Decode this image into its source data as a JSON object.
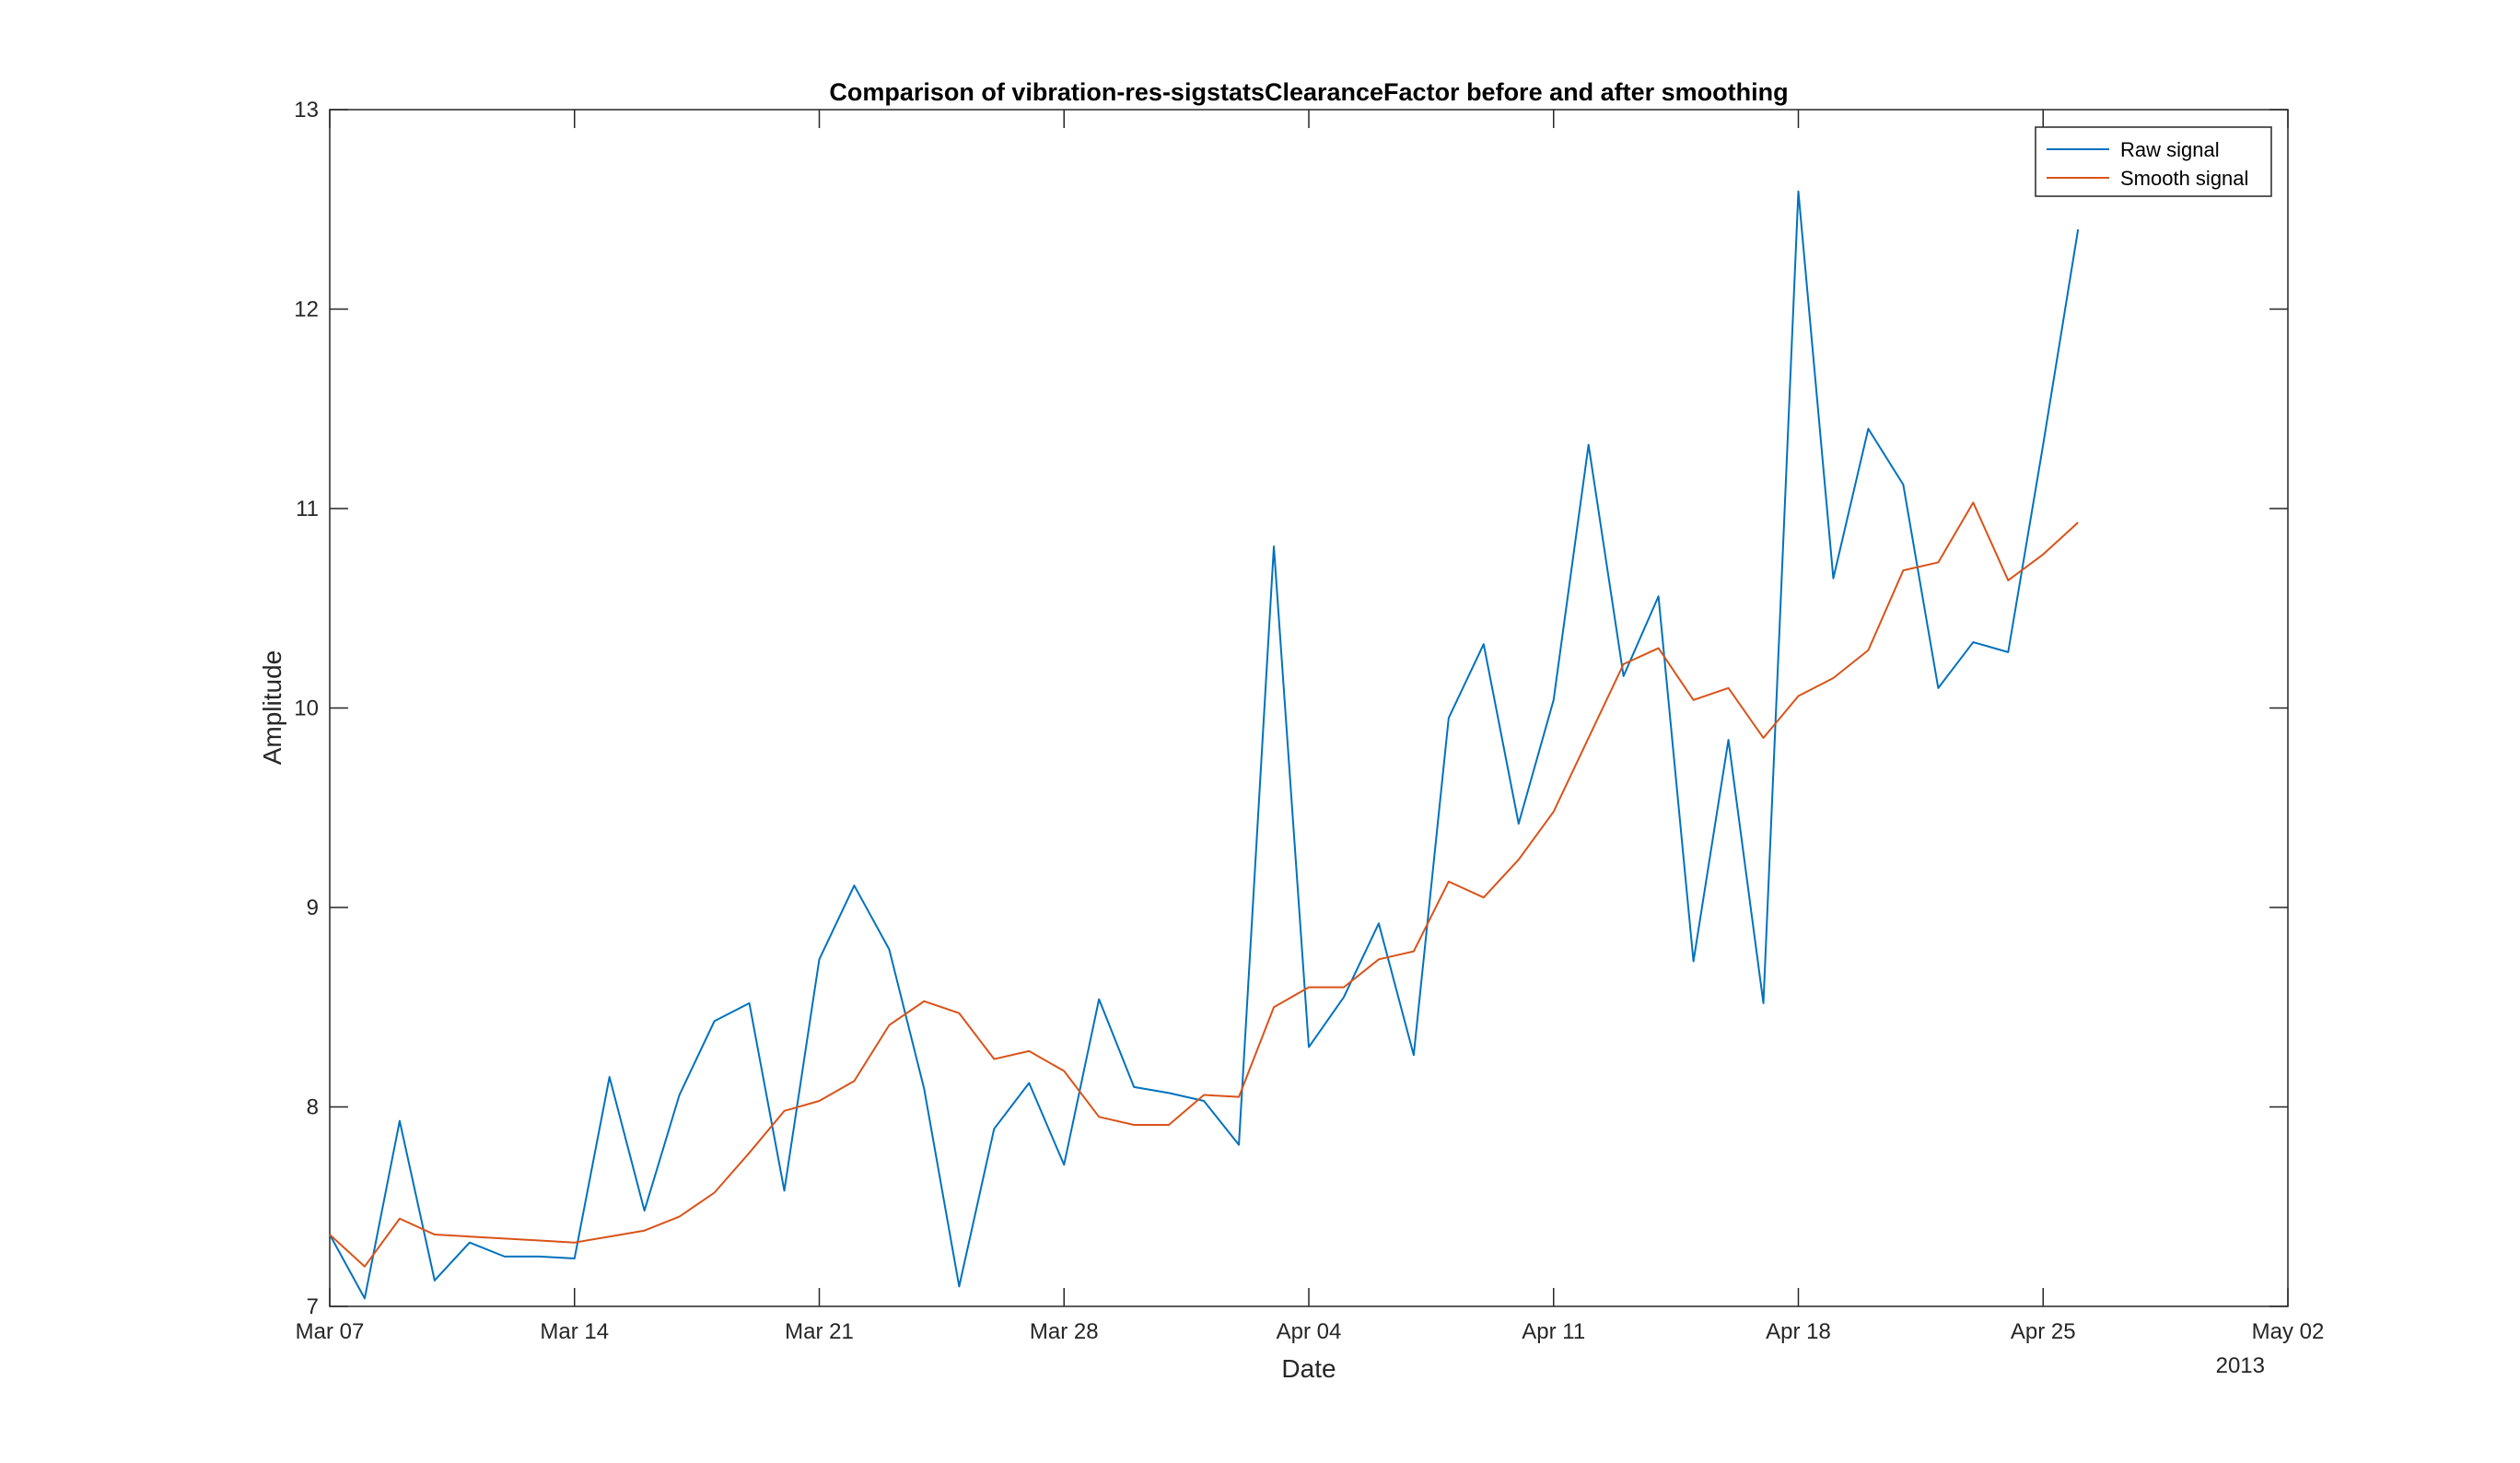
{
  "chart_data": {
    "type": "line",
    "title": "Comparison of vibration-res-sigstatsClearanceFactor before and after smoothing",
    "xlabel": "Date",
    "ylabel": "Amplitude",
    "x_axis_year_label": "2013",
    "x_ticks": [
      "Mar 07",
      "Mar 14",
      "Mar 21",
      "Mar 28",
      "Apr 04",
      "Apr 11",
      "Apr 18",
      "Apr 25",
      "May 02"
    ],
    "x_tick_dates": [
      "2013-03-07",
      "2013-03-14",
      "2013-03-21",
      "2013-03-28",
      "2013-04-04",
      "2013-04-11",
      "2013-04-18",
      "2013-04-25",
      "2013-05-02"
    ],
    "xlim": [
      "2013-03-07",
      "2013-05-02"
    ],
    "y_ticks": [
      "7",
      "8",
      "9",
      "10",
      "11",
      "12",
      "13"
    ],
    "ylim": [
      7,
      13
    ],
    "grid": false,
    "legend_position": "top-right",
    "x": [
      "2013-03-07",
      "2013-03-08",
      "2013-03-09",
      "2013-03-10",
      "2013-03-11",
      "2013-03-12",
      "2013-03-13",
      "2013-03-14",
      "2013-03-15",
      "2013-03-16",
      "2013-03-17",
      "2013-03-18",
      "2013-03-19",
      "2013-03-20",
      "2013-03-21",
      "2013-03-22",
      "2013-03-23",
      "2013-03-24",
      "2013-03-25",
      "2013-03-26",
      "2013-03-27",
      "2013-03-28",
      "2013-03-29",
      "2013-03-30",
      "2013-03-31",
      "2013-04-01",
      "2013-04-02",
      "2013-04-03",
      "2013-04-04",
      "2013-04-05",
      "2013-04-06",
      "2013-04-07",
      "2013-04-08",
      "2013-04-09",
      "2013-04-10",
      "2013-04-11",
      "2013-04-12",
      "2013-04-13",
      "2013-04-14",
      "2013-04-15",
      "2013-04-16",
      "2013-04-17",
      "2013-04-18",
      "2013-04-19",
      "2013-04-20",
      "2013-04-21",
      "2013-04-22",
      "2013-04-23",
      "2013-04-24",
      "2013-04-25",
      "2013-04-26",
      "2013-04-27"
    ],
    "series": [
      {
        "name": "Raw signal",
        "color": "#0072BD",
        "values": [
          7.36,
          7.04,
          7.93,
          7.13,
          7.32,
          7.25,
          7.25,
          7.24,
          8.15,
          7.48,
          8.06,
          8.43,
          8.52,
          7.58,
          8.74,
          9.11,
          8.79,
          8.09,
          7.1,
          7.89,
          8.12,
          7.71,
          8.54,
          8.1,
          8.07,
          8.03,
          7.81,
          10.81,
          8.3,
          8.55,
          8.92,
          8.26,
          9.95,
          10.32,
          9.42,
          10.04,
          11.32,
          10.16,
          10.56,
          8.73,
          9.84,
          8.52,
          12.59,
          10.65,
          11.4,
          11.12,
          10.1,
          10.33,
          10.28,
          11.32,
          12.4,
          null
        ]
      },
      {
        "name": "Smooth signal",
        "color": "#D95319",
        "values": [
          7.36,
          7.2,
          7.44,
          7.36,
          7.35,
          7.34,
          7.33,
          7.32,
          7.35,
          7.38,
          7.45,
          7.57,
          7.77,
          7.98,
          8.03,
          8.13,
          8.41,
          8.53,
          8.47,
          8.24,
          8.28,
          8.18,
          7.95,
          7.91,
          7.91,
          8.06,
          8.05,
          8.5,
          8.6,
          8.6,
          8.74,
          8.78,
          9.13,
          9.05,
          9.24,
          9.48,
          9.85,
          10.22,
          10.3,
          10.04,
          10.1,
          9.85,
          10.06,
          10.15,
          10.29,
          10.69,
          10.73,
          11.03,
          10.64,
          10.77,
          10.93,
          null
        ]
      }
    ]
  }
}
